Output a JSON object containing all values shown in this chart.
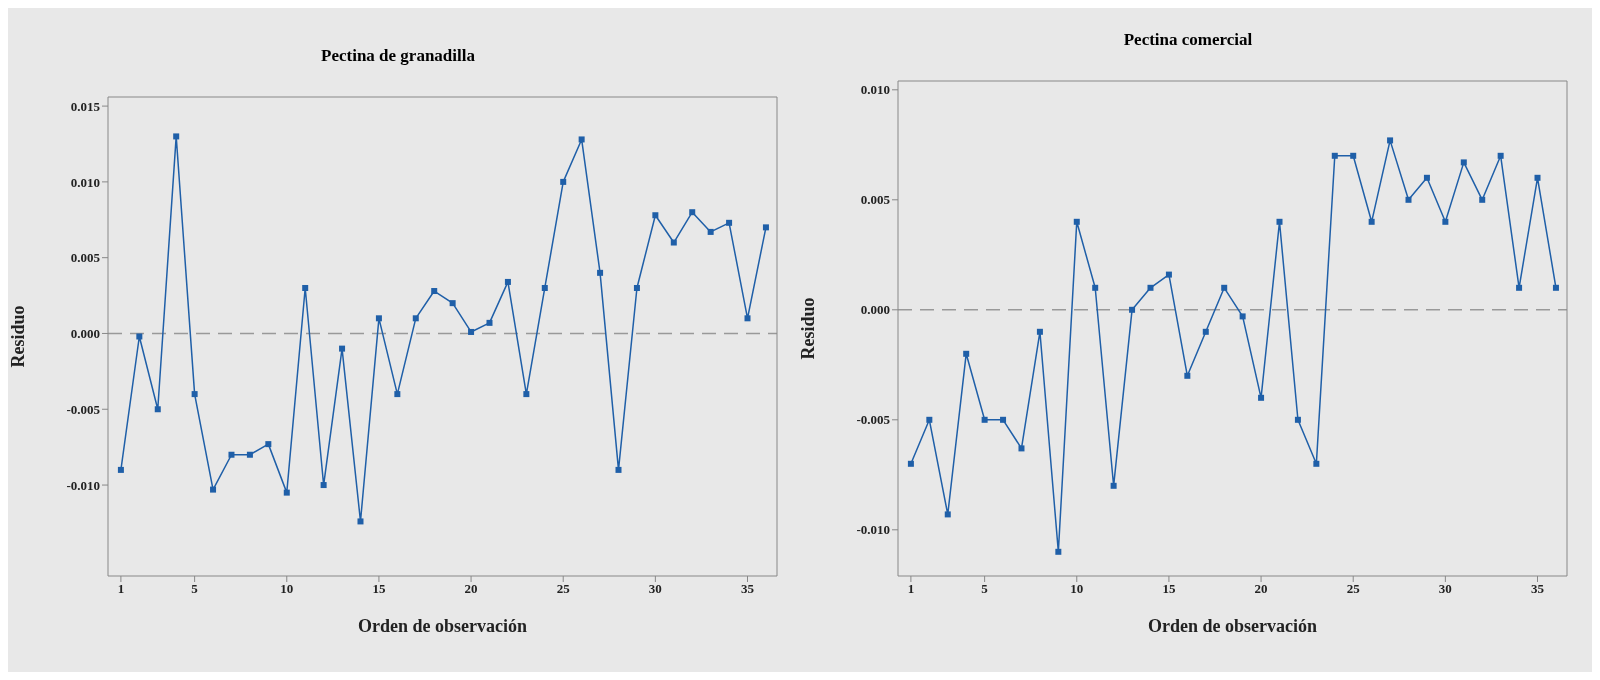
{
  "chart_data": [
    {
      "type": "line",
      "title": "Pectina de granadilla",
      "xlabel": "Orden de observación",
      "ylabel": "Residuo",
      "marker": "square",
      "x": [
        1,
        2,
        3,
        4,
        5,
        6,
        7,
        8,
        9,
        10,
        11,
        12,
        13,
        14,
        15,
        16,
        17,
        18,
        19,
        20,
        21,
        22,
        23,
        24,
        25,
        26,
        27,
        28,
        29,
        30,
        31,
        32,
        33,
        34,
        35,
        36
      ],
      "series": [
        {
          "color": "#1f5fa8",
          "values": [
            -0.009,
            -0.0002,
            -0.005,
            0.013,
            -0.004,
            -0.0103,
            -0.008,
            -0.008,
            -0.0073,
            -0.0105,
            0.003,
            -0.01,
            -0.001,
            -0.0124,
            0.001,
            -0.004,
            0.001,
            0.0028,
            0.002,
            0.0001,
            0.0007,
            0.0034,
            -0.004,
            0.003,
            0.01,
            0.0128,
            0.004,
            -0.009,
            0.003,
            0.0078,
            0.006,
            0.008,
            0.0067,
            0.0073,
            0.001,
            0.007
          ]
        }
      ],
      "xlim": [
        0.3,
        36.6
      ],
      "xticks": [
        1,
        5,
        10,
        15,
        20,
        25,
        30,
        35
      ],
      "ylim": [
        -0.016,
        0.0156
      ],
      "yticks": [
        {
          "value": -0.01,
          "label": "-0.010"
        },
        {
          "value": -0.005,
          "label": "-0.005"
        },
        {
          "value": 0,
          "label": "0.000"
        },
        {
          "value": 0.005,
          "label": "0.005"
        },
        {
          "value": 0.01,
          "label": "0.010"
        },
        {
          "value": 0.015,
          "label": "0.015"
        }
      ],
      "ref_lines": [
        {
          "axis": "y",
          "value": 0,
          "color": "#999999",
          "line_style": "dashed"
        }
      ]
    },
    {
      "type": "line",
      "title": "Pectina comercial",
      "xlabel": "Orden de observación",
      "ylabel": "Residuo",
      "marker": "square",
      "x": [
        1,
        2,
        3,
        4,
        5,
        6,
        7,
        8,
        9,
        10,
        11,
        12,
        13,
        14,
        15,
        16,
        17,
        18,
        19,
        20,
        21,
        22,
        23,
        24,
        25,
        26,
        27,
        28,
        29,
        30,
        31,
        32,
        33,
        34,
        35,
        36
      ],
      "series": [
        {
          "color": "#1f5fa8",
          "values": [
            -0.007,
            -0.005,
            -0.0093,
            -0.002,
            -0.005,
            -0.005,
            -0.0063,
            -0.001,
            -0.011,
            0.004,
            0.001,
            -0.008,
            0,
            0.001,
            0.0016,
            -0.003,
            -0.001,
            0.001,
            -0.0003,
            -0.004,
            0.004,
            -0.005,
            -0.007,
            0.007,
            0.007,
            0.004,
            0.0077,
            0.005,
            0.006,
            0.004,
            0.0067,
            0.005,
            0.007,
            0.001,
            0.006,
            0.001
          ]
        }
      ],
      "xlim": [
        0.3,
        36.6
      ],
      "xticks": [
        1,
        5,
        10,
        15,
        20,
        25,
        30,
        35
      ],
      "ylim": [
        -0.0121,
        0.0104
      ],
      "yticks": [
        {
          "value": -0.01,
          "label": "-0.010"
        },
        {
          "value": -0.005,
          "label": "-0.005"
        },
        {
          "value": 0,
          "label": "0.000"
        },
        {
          "value": 0.005,
          "label": "0.005"
        },
        {
          "value": 0.01,
          "label": "0.010"
        }
      ],
      "ref_lines": [
        {
          "axis": "y",
          "value": 0,
          "color": "#999999",
          "line_style": "dashed"
        }
      ]
    }
  ]
}
